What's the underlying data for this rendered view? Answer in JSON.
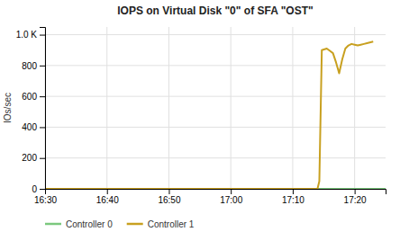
{
  "chart_data": {
    "type": "line",
    "title": "IOPS on Virtual Disk \"0\" of SFA \"OST\"",
    "y_label": "IOs/sec",
    "xlim": [
      0,
      55
    ],
    "xticks": [
      {
        "value": 0,
        "label": "16:30"
      },
      {
        "value": 10,
        "label": "16:40"
      },
      {
        "value": 20,
        "label": "16:50"
      },
      {
        "value": 30,
        "label": "17:00"
      },
      {
        "value": 40,
        "label": "17:10"
      },
      {
        "value": 50,
        "label": "17:20"
      }
    ],
    "ylim": [
      0,
      1050
    ],
    "yticks": [
      0,
      200,
      400,
      600,
      800,
      {
        "value": 1000,
        "label": "1.0 K"
      }
    ],
    "grid": true,
    "legend": "bottom",
    "series": [
      {
        "name": "Controller 0",
        "color": "#7bc87e",
        "x": [
          0,
          55
        ],
        "values": [
          0,
          0
        ]
      },
      {
        "name": "Controller 1",
        "color": "#c8a020",
        "x": [
          0,
          44,
          44.3,
          44.7,
          45.5,
          46,
          46.5,
          47,
          47.5,
          48,
          48.5,
          49,
          49.5,
          50,
          50.5,
          51,
          51.5,
          52,
          53
        ],
        "values": [
          0,
          0,
          50,
          900,
          910,
          895,
          880,
          820,
          750,
          840,
          910,
          930,
          940,
          935,
          930,
          935,
          940,
          945,
          955
        ]
      }
    ]
  }
}
